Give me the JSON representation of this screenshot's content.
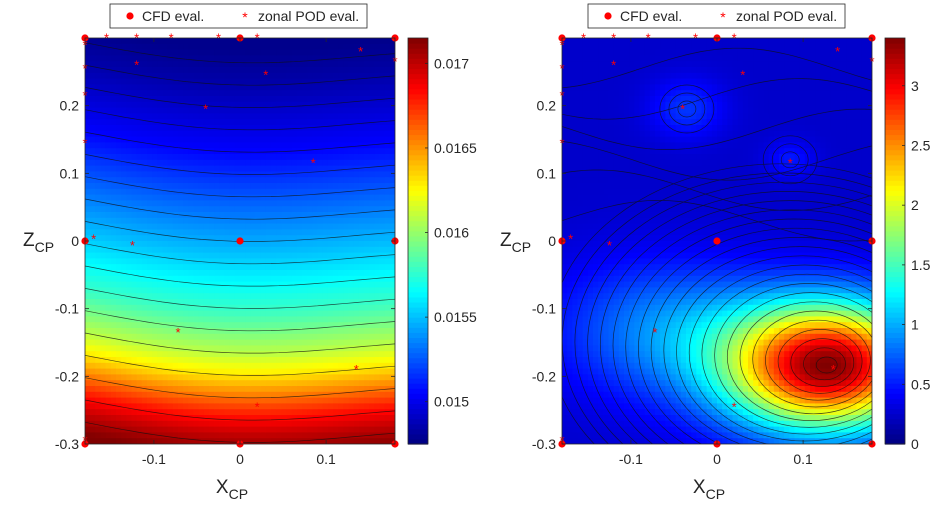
{
  "chart_data": [
    {
      "type": "heatmap",
      "xlabel": "X",
      "xlabel_sub": "CP",
      "ylabel": "Z",
      "ylabel_sub": "CP",
      "xlim": [
        -0.18,
        0.18
      ],
      "ylim": [
        -0.3,
        0.3
      ],
      "xticks": [
        -0.1,
        0,
        0.1
      ],
      "xtick_labels": [
        "-0.1",
        "0",
        "0.1"
      ],
      "yticks": [
        -0.3,
        -0.2,
        -0.1,
        0,
        0.1,
        0.2
      ],
      "ytick_labels": [
        "-0.3",
        "-0.2",
        "-0.1",
        "0",
        "0.1",
        "0.2"
      ],
      "colorbar": {
        "range": [
          0.01475,
          0.01715
        ],
        "ticks": [
          0.015,
          0.0155,
          0.016,
          0.0165,
          0.017
        ],
        "tick_labels": [
          "0.015",
          "0.0155",
          "0.016",
          "0.0165",
          "0.017"
        ]
      },
      "legend": {
        "placement": "top-center",
        "entries": [
          "CFD eval.",
          "zonal POD eval."
        ]
      },
      "field": {
        "kind": "layered",
        "z_rows": [
          -0.3,
          -0.27,
          -0.24,
          -0.21,
          -0.18,
          -0.15,
          -0.12,
          -0.09,
          -0.06,
          -0.03,
          0,
          0.05,
          0.1,
          0.15,
          0.2,
          0.25,
          0.3
        ],
        "values": [
          0.01715,
          0.017,
          0.0168,
          0.01655,
          0.0163,
          0.0161,
          0.01595,
          0.0158,
          0.0157,
          0.0156,
          0.0155,
          0.01535,
          0.0152,
          0.01505,
          0.01495,
          0.01485,
          0.01478
        ]
      },
      "cfd_points": [
        [
          -0.18,
          0.3
        ],
        [
          -0.18,
          0
        ],
        [
          -0.18,
          -0.3
        ],
        [
          0,
          0.3
        ],
        [
          0,
          0
        ],
        [
          0,
          -0.3
        ],
        [
          0.18,
          0.3
        ],
        [
          0.18,
          0
        ],
        [
          0.18,
          -0.3
        ]
      ],
      "pod_points": [
        [
          -0.18,
          0.29
        ],
        [
          -0.18,
          0.255
        ],
        [
          -0.18,
          0.215
        ],
        [
          -0.18,
          0.145
        ],
        [
          -0.18,
          -0.295
        ],
        [
          -0.155,
          0.3
        ],
        [
          -0.12,
          0.3
        ],
        [
          -0.08,
          0.3
        ],
        [
          -0.025,
          0.3
        ],
        [
          0.02,
          0.3
        ],
        [
          -0.17,
          0.003
        ],
        [
          -0.125,
          -0.007
        ],
        [
          -0.12,
          0.26
        ],
        [
          -0.04,
          0.195
        ],
        [
          0.03,
          0.245
        ],
        [
          0.085,
          0.115
        ],
        [
          0.14,
          0.28
        ],
        [
          -0.072,
          -0.135
        ],
        [
          0.135,
          -0.19
        ],
        [
          0.02,
          -0.245
        ],
        [
          0.18,
          0.265
        ]
      ]
    },
    {
      "type": "heatmap",
      "xlabel": "X",
      "xlabel_sub": "CP",
      "ylabel": "Z",
      "ylabel_sub": "CP",
      "xlim": [
        -0.18,
        0.18
      ],
      "ylim": [
        -0.3,
        0.3
      ],
      "xticks": [
        -0.1,
        0,
        0.1
      ],
      "xtick_labels": [
        "-0.1",
        "0",
        "0.1"
      ],
      "yticks": [
        -0.3,
        -0.2,
        -0.1,
        0,
        0.1,
        0.2
      ],
      "ytick_labels": [
        "-0.3",
        "-0.2",
        "-0.1",
        "0",
        "0.1",
        "0.2"
      ],
      "colorbar": {
        "range": [
          0,
          3.4
        ],
        "ticks": [
          0,
          0.5,
          1,
          1.5,
          2,
          2.5,
          3
        ],
        "tick_labels": [
          "0",
          "0.5",
          "1",
          "1.5",
          "2",
          "2.5",
          "3"
        ]
      },
      "legend": {
        "placement": "top-center",
        "entries": [
          "CFD eval.",
          "zonal POD eval."
        ]
      },
      "field": {
        "kind": "peaks",
        "background": 0.25,
        "peaks": [
          {
            "x": 0.13,
            "z": -0.185,
            "amp": 3.1,
            "sx": 0.085,
            "sz": 0.065
          },
          {
            "x": -0.035,
            "z": 0.195,
            "amp": 0.35,
            "sx": 0.03,
            "sz": 0.03
          },
          {
            "x": 0.085,
            "z": 0.12,
            "amp": 0.25,
            "sx": 0.02,
            "sz": 0.02
          }
        ]
      },
      "cfd_points": [
        [
          -0.18,
          0.3
        ],
        [
          -0.18,
          0
        ],
        [
          -0.18,
          -0.3
        ],
        [
          0,
          0.3
        ],
        [
          0,
          0
        ],
        [
          0,
          -0.3
        ],
        [
          0.18,
          0.3
        ],
        [
          0.18,
          0
        ],
        [
          0.18,
          -0.3
        ]
      ],
      "pod_points": [
        [
          -0.18,
          0.29
        ],
        [
          -0.18,
          0.255
        ],
        [
          -0.18,
          0.215
        ],
        [
          -0.18,
          0.145
        ],
        [
          -0.18,
          -0.295
        ],
        [
          -0.155,
          0.3
        ],
        [
          -0.12,
          0.3
        ],
        [
          -0.08,
          0.3
        ],
        [
          -0.025,
          0.3
        ],
        [
          0.02,
          0.3
        ],
        [
          -0.17,
          0.003
        ],
        [
          -0.125,
          -0.007
        ],
        [
          -0.12,
          0.26
        ],
        [
          -0.04,
          0.195
        ],
        [
          0.03,
          0.245
        ],
        [
          0.085,
          0.115
        ],
        [
          0.14,
          0.28
        ],
        [
          -0.072,
          -0.135
        ],
        [
          0.135,
          -0.19
        ],
        [
          0.02,
          -0.245
        ],
        [
          0.18,
          0.265
        ]
      ]
    }
  ]
}
